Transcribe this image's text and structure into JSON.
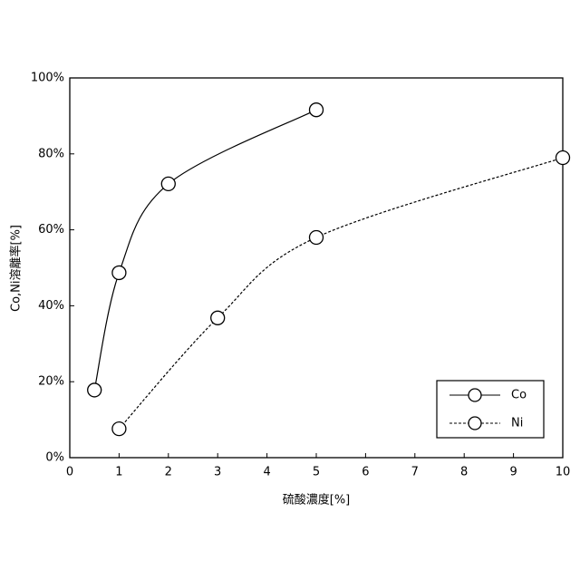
{
  "chart_data": {
    "type": "line",
    "xlabel": "硫酸濃度[%]",
    "ylabel": "Co,Ni溶離率[%]",
    "xlim": [
      0,
      10
    ],
    "xticks": [
      0,
      1,
      2,
      3,
      4,
      5,
      6,
      7,
      8,
      9,
      10
    ],
    "ylim": [
      0,
      100
    ],
    "yticks": [
      {
        "value": 0,
        "label": "0%"
      },
      {
        "value": 20,
        "label": "20%"
      },
      {
        "value": 40,
        "label": "40%"
      },
      {
        "value": 60,
        "label": "60%"
      },
      {
        "value": 80,
        "label": "80%"
      },
      {
        "value": 100,
        "label": "100%"
      }
    ],
    "legend": "lower right",
    "series": [
      {
        "name": "Co",
        "color": "#000000",
        "dash": false,
        "x": [
          0.5,
          1,
          2,
          5
        ],
        "values": [
          17.8,
          48.7,
          72.1,
          91.6
        ]
      },
      {
        "name": "Ni",
        "color": "#000000",
        "dash": true,
        "x": [
          1,
          3,
          5,
          10
        ],
        "values": [
          7.6,
          36.8,
          58.0,
          79.0
        ]
      }
    ]
  }
}
